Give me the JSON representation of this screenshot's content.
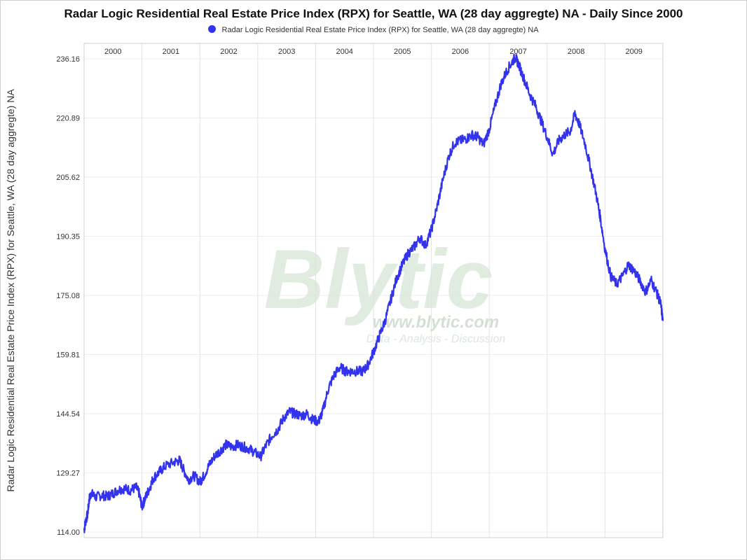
{
  "chart_data": {
    "type": "line",
    "title": "Radar Logic Residential Real Estate Price Index (RPX) for Seattle, WA (28 day aggregte) NA - Daily Since 2000",
    "ylabel": "Radar Logic Residential Real Estate Price Index (RPX) for Seattle, WA (28 day aggregte) NA",
    "xlabel": "",
    "ylim": [
      114.0,
      237.5
    ],
    "y_ticks": [
      "114.00",
      "129.27",
      "144.54",
      "159.81",
      "175.08",
      "190.35",
      "205.62",
      "220.89",
      "236.16"
    ],
    "x_range": [
      2000.0,
      2010.0
    ],
    "year_labels": [
      "2000",
      "2001",
      "2002",
      "2003",
      "2004",
      "2005",
      "2006",
      "2007",
      "2008",
      "2009"
    ],
    "grid": true,
    "legend_position": "top-center",
    "series": [
      {
        "name": "Radar Logic Residential Real Estate Price Index (RPX) for Seattle, WA (28 day aggregte) NA",
        "color": "#3333ee",
        "points": [
          [
            2000.0,
            114.5
          ],
          [
            2000.03,
            117.0
          ],
          [
            2000.06,
            118.5
          ],
          [
            2000.09,
            122.5
          ],
          [
            2000.12,
            124.0
          ],
          [
            2000.2,
            123.0
          ],
          [
            2000.3,
            123.5
          ],
          [
            2000.4,
            123.2
          ],
          [
            2000.5,
            124.0
          ],
          [
            2000.6,
            125.0
          ],
          [
            2000.7,
            125.2
          ],
          [
            2000.8,
            124.8
          ],
          [
            2000.9,
            125.5
          ],
          [
            2000.95,
            124.0
          ],
          [
            2001.0,
            120.5
          ],
          [
            2001.05,
            122.5
          ],
          [
            2001.12,
            125.0
          ],
          [
            2001.2,
            128.0
          ],
          [
            2001.3,
            129.5
          ],
          [
            2001.4,
            131.0
          ],
          [
            2001.55,
            132.0
          ],
          [
            2001.65,
            132.5
          ],
          [
            2001.72,
            130.0
          ],
          [
            2001.8,
            127.5
          ],
          [
            2001.9,
            128.5
          ],
          [
            2002.0,
            127.0
          ],
          [
            2002.05,
            128.0
          ],
          [
            2002.15,
            131.0
          ],
          [
            2002.25,
            133.5
          ],
          [
            2002.35,
            135.0
          ],
          [
            2002.45,
            136.5
          ],
          [
            2002.55,
            136.0
          ],
          [
            2002.65,
            136.5
          ],
          [
            2002.75,
            136.0
          ],
          [
            2002.85,
            135.5
          ],
          [
            2002.95,
            134.5
          ],
          [
            2003.05,
            133.5
          ],
          [
            2003.15,
            136.5
          ],
          [
            2003.25,
            139.0
          ],
          [
            2003.35,
            140.5
          ],
          [
            2003.45,
            143.5
          ],
          [
            2003.55,
            145.0
          ],
          [
            2003.65,
            144.5
          ],
          [
            2003.75,
            144.0
          ],
          [
            2003.85,
            144.5
          ],
          [
            2003.95,
            143.0
          ],
          [
            2004.05,
            142.5
          ],
          [
            2004.12,
            145.0
          ],
          [
            2004.22,
            151.0
          ],
          [
            2004.32,
            154.5
          ],
          [
            2004.42,
            156.5
          ],
          [
            2004.52,
            155.5
          ],
          [
            2004.62,
            155.5
          ],
          [
            2004.72,
            155.5
          ],
          [
            2004.82,
            155.5
          ],
          [
            2004.9,
            157.0
          ],
          [
            2005.0,
            160.5
          ],
          [
            2005.1,
            164.5
          ],
          [
            2005.2,
            168.5
          ],
          [
            2005.3,
            174.0
          ],
          [
            2005.4,
            179.5
          ],
          [
            2005.5,
            183.0
          ],
          [
            2005.6,
            186.0
          ],
          [
            2005.7,
            187.5
          ],
          [
            2005.8,
            190.0
          ],
          [
            2005.9,
            188.0
          ],
          [
            2006.0,
            192.0
          ],
          [
            2006.1,
            198.0
          ],
          [
            2006.2,
            205.0
          ],
          [
            2006.3,
            211.0
          ],
          [
            2006.4,
            214.5
          ],
          [
            2006.5,
            215.0
          ],
          [
            2006.6,
            215.5
          ],
          [
            2006.7,
            216.5
          ],
          [
            2006.8,
            216.0
          ],
          [
            2006.9,
            214.0
          ],
          [
            2007.0,
            218.0
          ],
          [
            2007.1,
            224.0
          ],
          [
            2007.2,
            229.5
          ],
          [
            2007.3,
            233.0
          ],
          [
            2007.4,
            235.5
          ],
          [
            2007.45,
            236.5
          ],
          [
            2007.5,
            235.0
          ],
          [
            2007.6,
            231.0
          ],
          [
            2007.7,
            227.0
          ],
          [
            2007.8,
            224.0
          ],
          [
            2007.9,
            220.0
          ],
          [
            2008.0,
            216.0
          ],
          [
            2008.1,
            211.5
          ],
          [
            2008.2,
            215.0
          ],
          [
            2008.3,
            216.5
          ],
          [
            2008.4,
            217.5
          ],
          [
            2008.48,
            222.0
          ],
          [
            2008.55,
            219.5
          ],
          [
            2008.65,
            214.5
          ],
          [
            2008.75,
            208.0
          ],
          [
            2008.85,
            201.0
          ],
          [
            2008.92,
            195.0
          ],
          [
            2009.0,
            187.0
          ],
          [
            2009.1,
            180.0
          ],
          [
            2009.2,
            178.0
          ],
          [
            2009.3,
            180.0
          ],
          [
            2009.4,
            183.0
          ],
          [
            2009.5,
            181.5
          ],
          [
            2009.6,
            179.0
          ],
          [
            2009.7,
            176.0
          ],
          [
            2009.8,
            179.0
          ],
          [
            2009.9,
            175.5
          ],
          [
            2009.96,
            173.0
          ],
          [
            2010.0,
            168.5
          ]
        ]
      }
    ]
  },
  "watermark": {
    "brand": "Blytic",
    "url": "www.blytic.com",
    "tagline": "Data - Analysis - Discussion"
  }
}
